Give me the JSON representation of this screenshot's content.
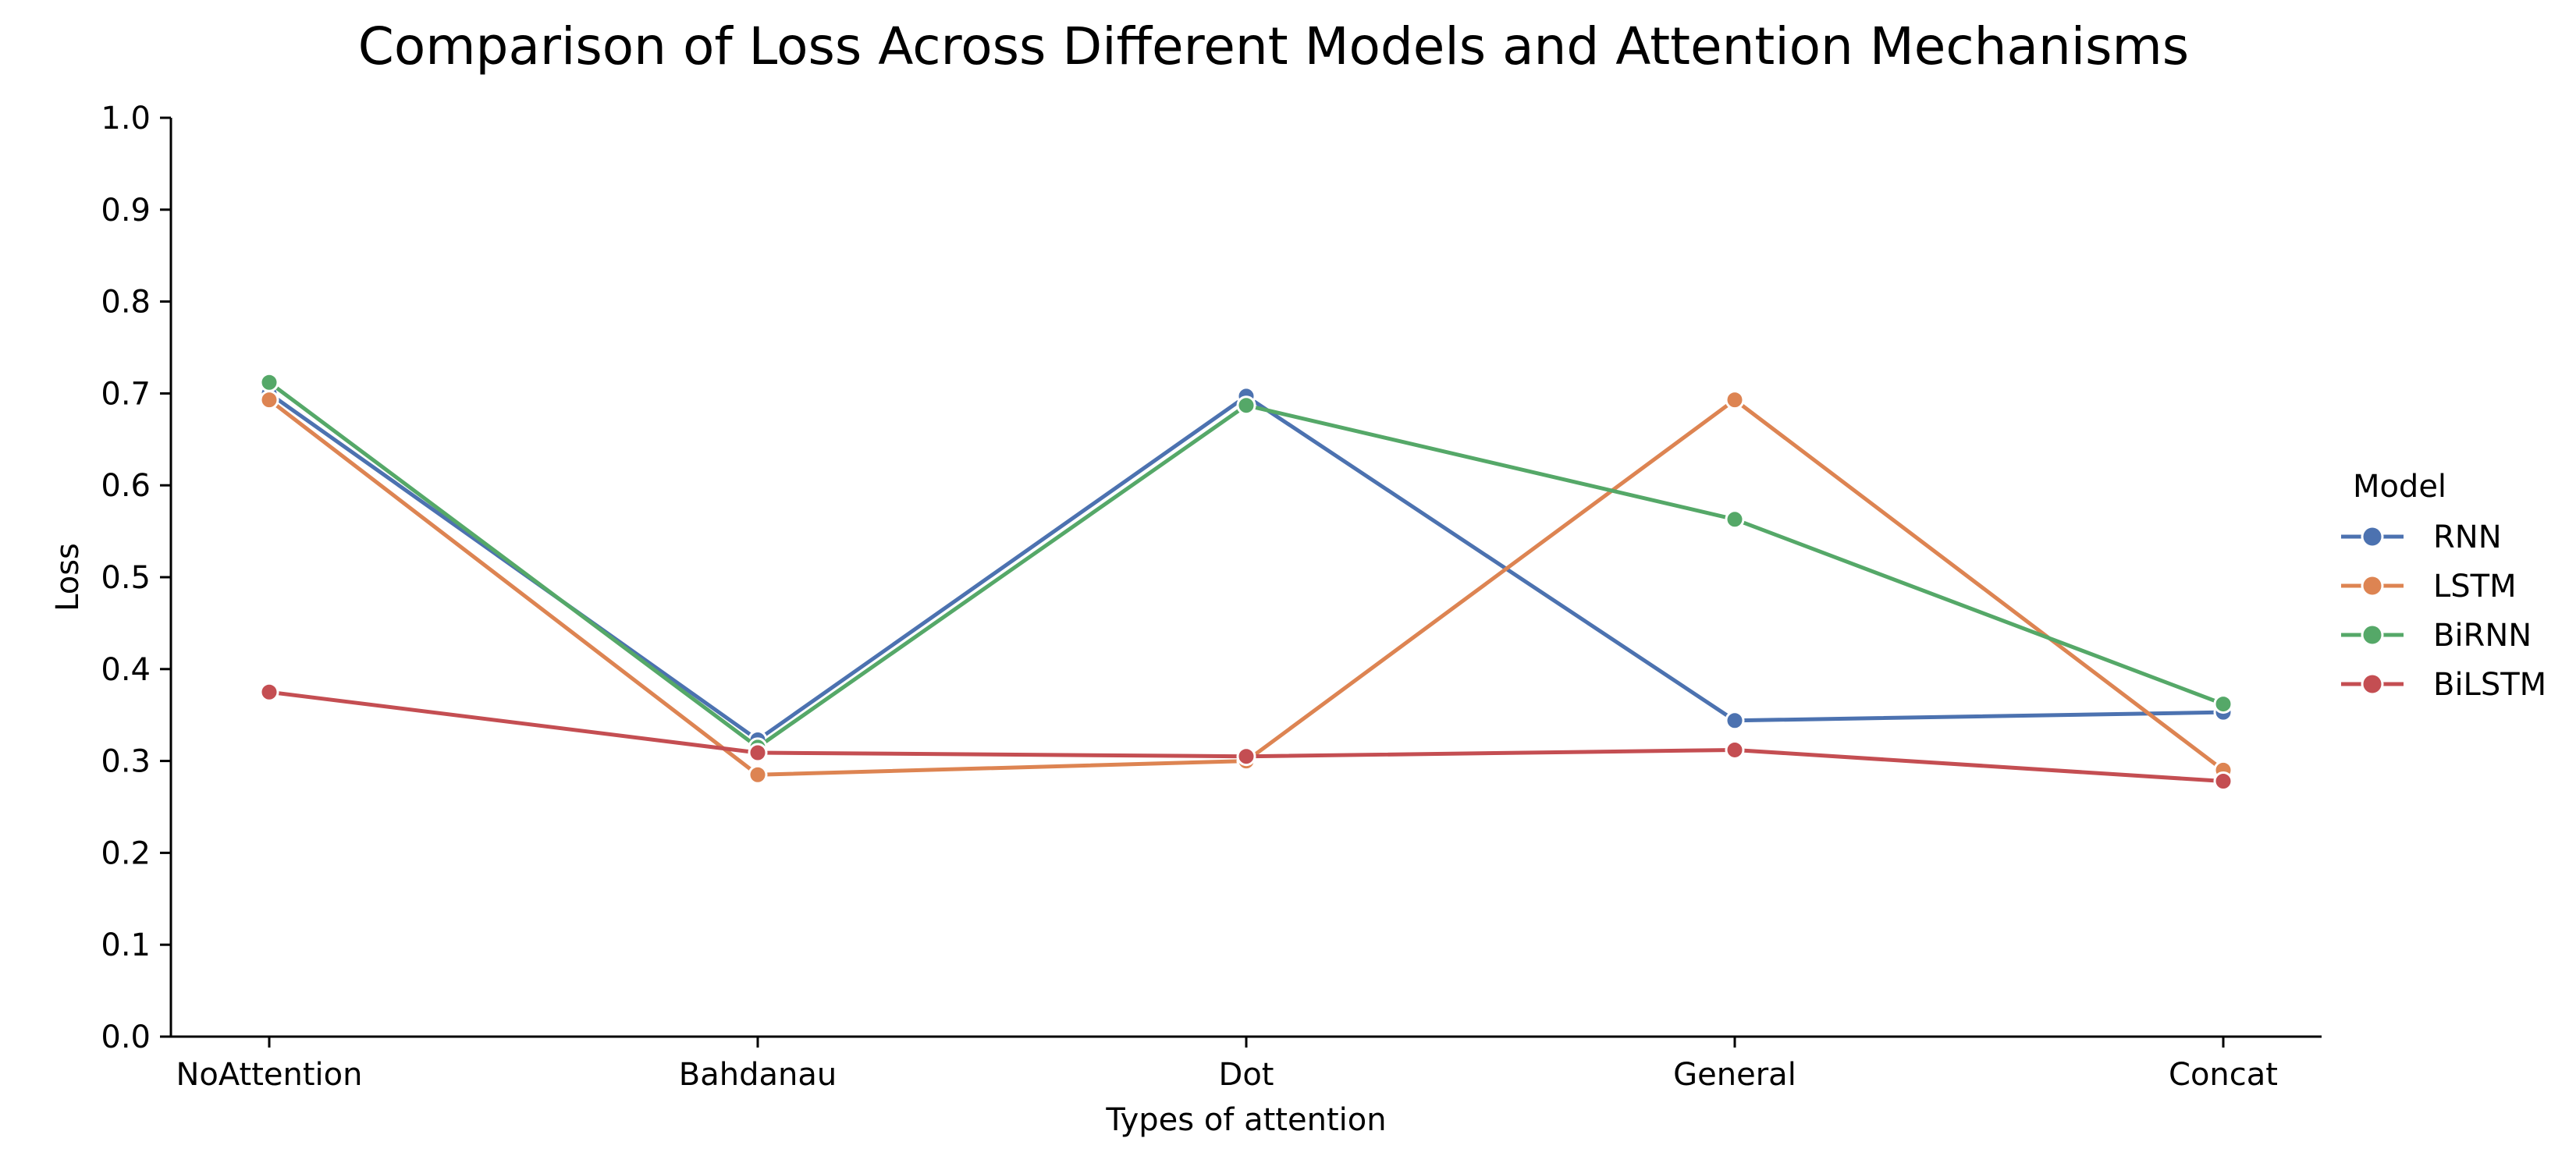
{
  "chart_data": {
    "type": "line",
    "title": "Comparison of Loss Across Different Models and Attention Mechanisms",
    "xlabel": "Types of attention",
    "ylabel": "Loss",
    "categories": [
      "NoAttention",
      "Bahdanau",
      "Dot",
      "General",
      "Concat"
    ],
    "ylim": [
      0.0,
      1.0
    ],
    "yticks": [
      "0.0",
      "0.1",
      "0.2",
      "0.3",
      "0.4",
      "0.5",
      "0.6",
      "0.7",
      "0.8",
      "0.9",
      "1.0"
    ],
    "grid": false,
    "legend": {
      "title": "Model",
      "placement": "right"
    },
    "series": [
      {
        "name": "RNN",
        "color": "#4c72b0",
        "values": [
          0.7,
          0.323,
          0.697,
          0.344,
          0.353
        ]
      },
      {
        "name": "LSTM",
        "color": "#dd8452",
        "values": [
          0.693,
          0.285,
          0.3,
          0.693,
          0.29
        ]
      },
      {
        "name": "BiRNN",
        "color": "#55a868",
        "values": [
          0.712,
          0.315,
          0.687,
          0.563,
          0.362
        ]
      },
      {
        "name": "BiLSTM",
        "color": "#c44e52",
        "values": [
          0.375,
          0.309,
          0.305,
          0.312,
          0.278
        ]
      }
    ]
  }
}
